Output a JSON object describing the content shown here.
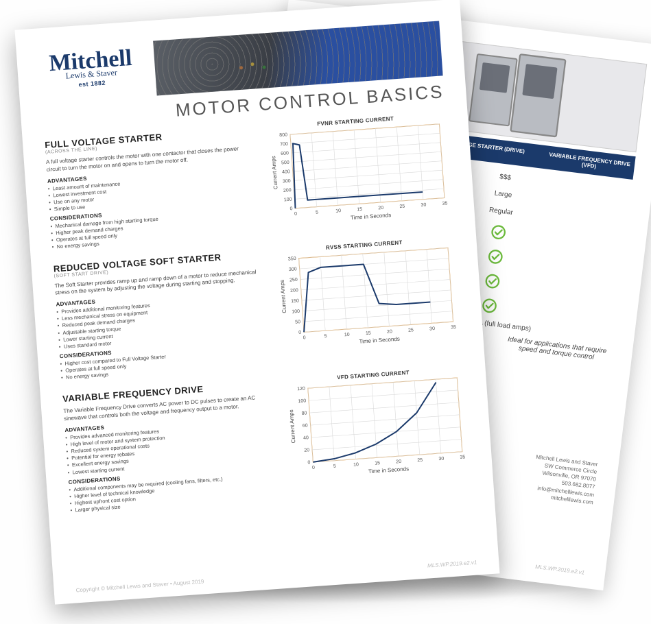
{
  "logo": {
    "name": "Mitchell",
    "sub": "Lewis & Staver",
    "est": "est 1882",
    "color": "#1b3a6b"
  },
  "doc_title": "MOTOR CONTROL BASICS",
  "labels": {
    "advantages": "ADVANTAGES",
    "considerations": "CONSIDERATIONS"
  },
  "sections": {
    "fvs": {
      "title": "FULL VOLTAGE STARTER",
      "sub": "(ACROSS THE LINE)",
      "desc": "A full voltage starter controls the motor with one contactor that closes the power circuit to turn the motor on and opens to turn the motor off.",
      "advantages": [
        "Least amount of maintenance",
        "Lowest investment cost",
        "Use on any motor",
        "Simple to use"
      ],
      "considerations": [
        "Mechanical damage from high starting torque",
        "Higher peak demand charges",
        "Operates at full speed only",
        "No energy savings"
      ]
    },
    "rvss": {
      "title": "REDUCED VOLTAGE SOFT STARTER",
      "sub": "(SOFT START DRIVE)",
      "desc": "The Soft Starter provides ramp up and ramp down of a motor to reduce mechanical stress on the system by adjusting the voltage during starting and stopping.",
      "advantages": [
        "Provides additional monitoring features",
        "Less mechanical stress on equipment",
        "Reduced peak demand charges",
        "Adjustable starting torque",
        "Lower starting current",
        "Uses standard motor"
      ],
      "considerations": [
        "Higher cost compared to Full Voltage Starter",
        "Operates at full speed only",
        "No energy savings"
      ]
    },
    "vfd": {
      "title": "VARIABLE FREQUENCY DRIVE",
      "sub": "",
      "desc": "The Variable Frequency Drive converts AC power to DC pulses to create an AC sinewave that controls both the voltage and frequency output to a motor.",
      "advantages": [
        "Provides advanced monitoring features",
        "High level of motor and system protection",
        "Reduced system operational costs",
        "Potential for energy rebates",
        "Excellent energy savings",
        "Lowest starting current"
      ],
      "considerations": [
        "Additional components may be required (cooling fans, filters, etc.)",
        "Higher level of technical knowledge",
        "Highest upfront cost option",
        "Larger physical size"
      ]
    }
  },
  "charts": {
    "common": {
      "xlabel": "Time in Seconds",
      "ylabel": "Current Amps",
      "xlim": [
        0,
        35
      ],
      "xtick_step": 5,
      "line_color": "#1b3a6b",
      "line_width": 2,
      "grid_color": "#d9d9d9",
      "border_color": "#e29a3d",
      "background_color": "#ffffff",
      "label_fontsize": 8,
      "tick_fontsize": 7
    },
    "fvnr": {
      "title": "FVNR STARTING CURRENT",
      "ylim": [
        0,
        800
      ],
      "ytick_step": 100,
      "points": [
        [
          0,
          0
        ],
        [
          0.5,
          700
        ],
        [
          2,
          680
        ],
        [
          3,
          80
        ],
        [
          30,
          80
        ]
      ]
    },
    "rvss": {
      "title": "RVSS STARTING CURRENT",
      "ylim": [
        0,
        350
      ],
      "ytick_step": 50,
      "points": [
        [
          0,
          0
        ],
        [
          2,
          280
        ],
        [
          5,
          300
        ],
        [
          15,
          300
        ],
        [
          18,
          110
        ],
        [
          22,
          100
        ],
        [
          30,
          100
        ]
      ]
    },
    "vfd": {
      "title": "VFD STARTING CURRENT",
      "ylim": [
        0,
        120
      ],
      "ytick_step": 20,
      "points": [
        [
          0,
          0
        ],
        [
          5,
          3
        ],
        [
          10,
          10
        ],
        [
          15,
          22
        ],
        [
          20,
          40
        ],
        [
          25,
          68
        ],
        [
          30,
          115
        ]
      ]
    }
  },
  "footer": {
    "copyright": "Copyright © Mitchell Lewis and Staver • August 2019",
    "code": "MLS.WP.2019.e2.v1"
  },
  "back_page": {
    "header_cells": [
      "VOLTAGE STARTER (DRIVE)",
      "VARIABLE FREQUENCY DRIVE (VFD)"
    ],
    "rows": [
      "$$$",
      "Large",
      "Regular"
    ],
    "checks": 4,
    "check_color": "#6cbb3c",
    "fla_note": "100% of FLA (full load amps)",
    "ideal_note": "Ideal for applications that require speed and torque control",
    "address": [
      "Mitchell Lewis and Staver",
      "SW Commerce Circle",
      "Wilsonville, OR 97070",
      "503.682.8077",
      "info@mitchelllewis.com",
      "mitchelllewis.com"
    ],
    "code": "MLS.WP.2019.e2.v1"
  }
}
